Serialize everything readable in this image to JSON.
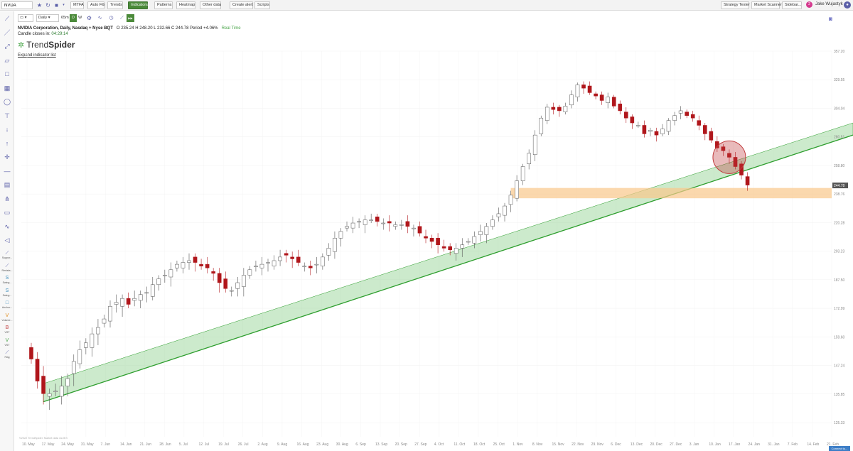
{
  "toolbar": {
    "symbol": "NVDA",
    "buttons": [
      "MTFA",
      "Auto Fib",
      "Trends",
      "Indicators",
      "Patterns",
      "Heatmap",
      "Other data",
      "Create alert",
      "Scripts"
    ],
    "active_button": "Indicators",
    "right_buttons": [
      "Strategy Tester",
      "Market Scanner",
      "Sidebar..."
    ],
    "notification_count": "2",
    "user": "Jake Wujastyk"
  },
  "chart_header": {
    "interval": "Daily",
    "timeframe": "65m",
    "d_label": "D",
    "w_label": "W",
    "title": "NVIDIA Corporation, Daily, Nasdaq + Nyse BQT",
    "ohlc": "O 235.24   H 248.20   L 232.66   C 244.78   Period +4.06%",
    "realtime": "Real Time",
    "candle_close_label": "Candle closes in:",
    "candle_close_time": "04:29:14",
    "logo_plain": "Trend",
    "logo_bold": "Spider",
    "expand_link": "Expand indicator list"
  },
  "left_tools": {
    "labels": [
      "Suppor...",
      "Resista...",
      "Swing...",
      "Swing...",
      "Anchor...",
      "Volume...",
      "VST",
      "VST",
      "Flag"
    ]
  },
  "colors": {
    "up_candle": "#ffffff",
    "down_candle": "#b0161b",
    "trend_band": "#8fd18f",
    "trend_line": "#2e9e2e",
    "support_zone": "#f9c88a",
    "circle": "#c0393b",
    "price_tag": "#555555"
  },
  "chart_data": {
    "type": "candlestick",
    "title": "NVIDIA Corporation, Daily, Nasdaq + Nyse BQT",
    "last_price": "244.78",
    "y_ticks": [
      "357.20",
      "329.55",
      "304.04",
      "280.51",
      "258.80",
      "238.76",
      "220.28",
      "203.23",
      "187.50",
      "172.99",
      "159.60",
      "147.24",
      "135.85",
      "125.33"
    ],
    "x_ticks": [
      "10. May",
      "17. May",
      "24. May",
      "31. May",
      "7. Jun",
      "14. Jun",
      "21. Jun",
      "28. Jun",
      "5. Jul",
      "12. Jul",
      "19. Jul",
      "26. Jul",
      "2. Aug",
      "9. Aug",
      "16. Aug",
      "23. Aug",
      "30. Aug",
      "6. Sep",
      "13. Sep",
      "20. Sep",
      "27. Sep",
      "4. Oct",
      "11. Oct",
      "18. Oct",
      "25. Oct",
      "1. Nov",
      "8. Nov",
      "15. Nov",
      "22. Nov",
      "29. Nov",
      "6. Dec",
      "13. Dec",
      "20. Dec",
      "27. Dec",
      "3. Jan",
      "10. Jan",
      "17. Jan",
      "24. Jan",
      "31. Jan",
      "7. Feb",
      "14. Feb",
      "21. Feb"
    ],
    "closes": [
      150,
      141,
      136,
      136,
      137,
      139,
      142,
      149,
      154,
      157,
      161,
      164,
      168,
      174,
      176,
      178,
      175,
      178,
      180,
      181,
      185,
      188,
      190,
      193,
      196,
      197,
      198,
      197,
      195,
      194,
      191,
      186,
      183,
      182,
      186,
      190,
      193,
      195,
      196,
      197,
      198,
      200,
      201,
      199,
      197,
      195,
      194,
      196,
      200,
      205,
      211,
      215,
      218,
      220,
      221,
      222,
      222,
      221,
      220,
      220,
      219,
      219,
      218,
      217,
      214,
      211,
      209,
      207,
      205,
      204,
      205,
      207,
      209,
      212,
      215,
      218,
      222,
      226,
      231,
      238,
      248,
      258,
      268,
      282,
      296,
      305,
      303,
      302,
      306,
      316,
      325,
      322,
      318,
      315,
      311,
      314,
      306,
      302,
      296,
      292,
      290,
      283,
      286,
      282,
      287,
      294,
      298,
      302,
      298,
      296,
      290,
      283,
      278,
      272,
      270,
      265,
      258,
      252,
      245
    ],
    "support_zone": [
      236,
      243
    ],
    "trend_band": {
      "start": {
        "date": "17. May",
        "lower": 133,
        "upper": 140
      },
      "end": {
        "date": "21. Feb",
        "lower": 282,
        "upper": 292
      }
    }
  },
  "watermark": "©2022 TrendSpider. Market data via IEX",
  "corner_button": "Connect to..."
}
